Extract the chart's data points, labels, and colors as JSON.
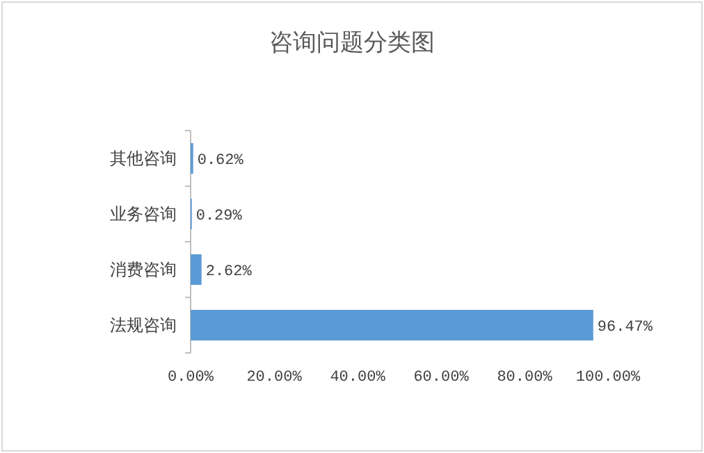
{
  "chart_data": {
    "type": "bar",
    "orientation": "horizontal",
    "title": "咨询问题分类图",
    "categories": [
      "其他咨询",
      "业务咨询",
      "消费咨询",
      "法规咨询"
    ],
    "values": [
      0.62,
      0.29,
      2.62,
      96.47
    ],
    "value_labels": [
      "0.62%",
      "0.29%",
      "2.62%",
      "96.47%"
    ],
    "color": "#5b9bd5",
    "xlim": [
      0,
      100
    ],
    "xticks": [
      {
        "value": 0,
        "label": "0.00%"
      },
      {
        "value": 20,
        "label": "20.00%"
      },
      {
        "value": 40,
        "label": "40.00%"
      },
      {
        "value": 60,
        "label": "60.00%"
      },
      {
        "value": 80,
        "label": "80.00%"
      },
      {
        "value": 100,
        "label": "100.00%"
      }
    ]
  }
}
